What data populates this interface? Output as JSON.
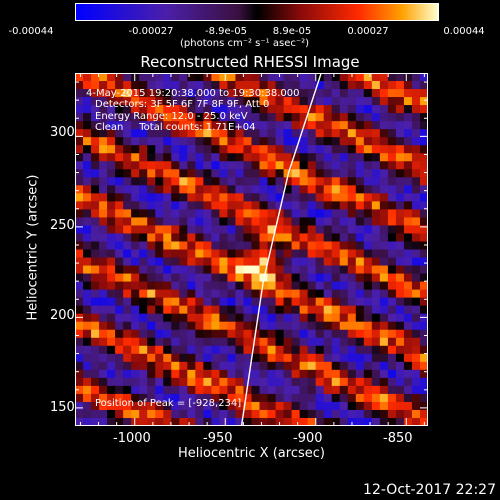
{
  "colorbar": {
    "ticks": [
      "-0.00044",
      "-0.00027",
      "-8.9e-05",
      "8.9e-05",
      "0.00027",
      "0.00044"
    ],
    "unit_label": "(photons cm⁻² s⁻¹ asec⁻²)",
    "range": [
      -0.00044,
      0.00044
    ]
  },
  "chart_data": {
    "type": "heatmap",
    "title": "Reconstructed RHESSI Image",
    "xlabel": "Heliocentric X (arcsec)",
    "ylabel": "Heliocentric Y (arcsec)",
    "xlim": [
      -1033,
      -838
    ],
    "ylim": [
      140,
      335
    ],
    "x_ticks": [
      "-1000",
      "-950",
      "-900",
      "-850"
    ],
    "x_tick_values": [
      -1000,
      -950,
      -900,
      -850
    ],
    "y_ticks": [
      "150",
      "200",
      "250",
      "300"
    ],
    "y_tick_values": [
      150,
      200,
      250,
      300
    ],
    "peak": {
      "x": -928,
      "y": 234
    },
    "limb_points": [
      [
        -941,
        140
      ],
      [
        -929,
        220
      ],
      [
        -915,
        280
      ],
      [
        -897,
        335
      ]
    ],
    "annotations": {
      "time_range": "4-May-2015 19:20:38.000 to 19:30:38.000",
      "detectors": "Detectors: 3F 5F 6F 7F 8F 9F, Att 0",
      "energy": "Energy Range: 12.0 - 25.0 keV",
      "clean": "Clean     Total counts: 1.71E+04",
      "peak_text": "Position of Peak = [-928,234]"
    }
  },
  "footer": {
    "timestamp": "12-Oct-2017 22:27"
  }
}
